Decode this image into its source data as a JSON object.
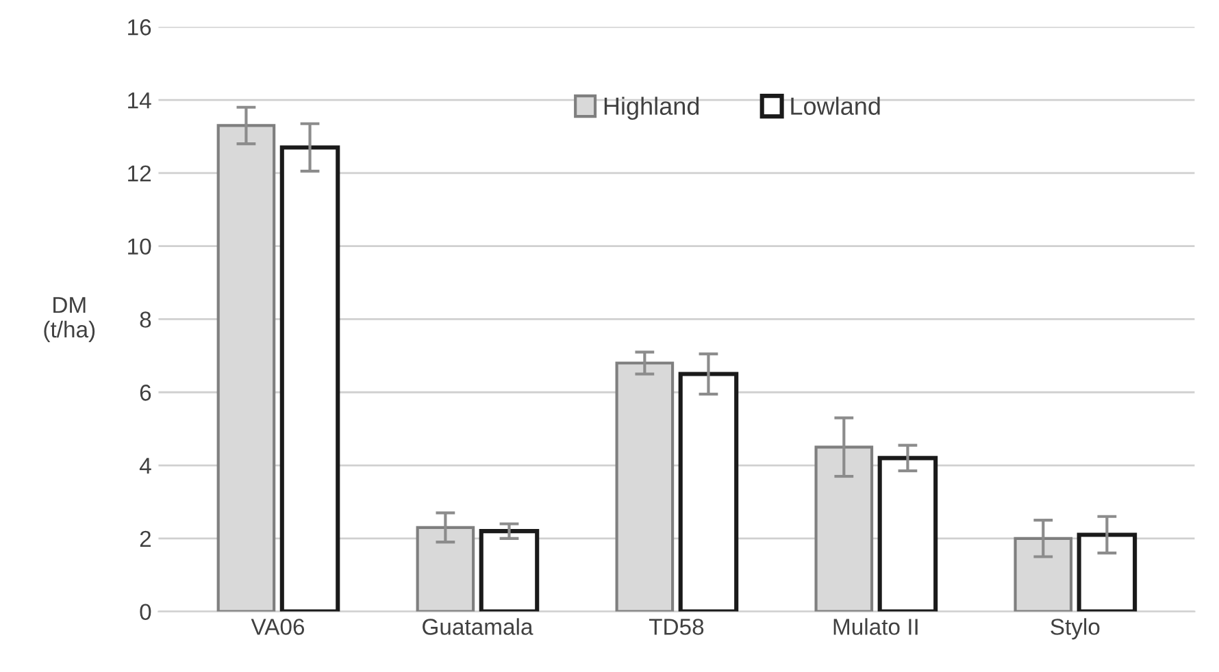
{
  "chart_data": {
    "type": "bar",
    "ylabel": "DM\n(t/ha)",
    "categories": [
      "VA06",
      "Guatamala",
      "TD58",
      "Mulato II",
      "Stylo"
    ],
    "series": [
      {
        "name": "Highland",
        "color": "#d9d9d9",
        "values": [
          13.3,
          2.3,
          6.8,
          4.5,
          2.0
        ],
        "errors": [
          0.5,
          0.4,
          0.3,
          0.8,
          0.5
        ]
      },
      {
        "name": "Lowland",
        "color": "#ffffff",
        "values": [
          12.7,
          2.2,
          6.5,
          4.2,
          2.1
        ],
        "errors": [
          0.65,
          0.2,
          0.55,
          0.35,
          0.5
        ]
      }
    ],
    "ylim": [
      0,
      16
    ],
    "yticks": [
      0,
      2,
      4,
      6,
      8,
      10,
      12,
      14,
      16
    ],
    "grid": "y",
    "legend": "top"
  }
}
